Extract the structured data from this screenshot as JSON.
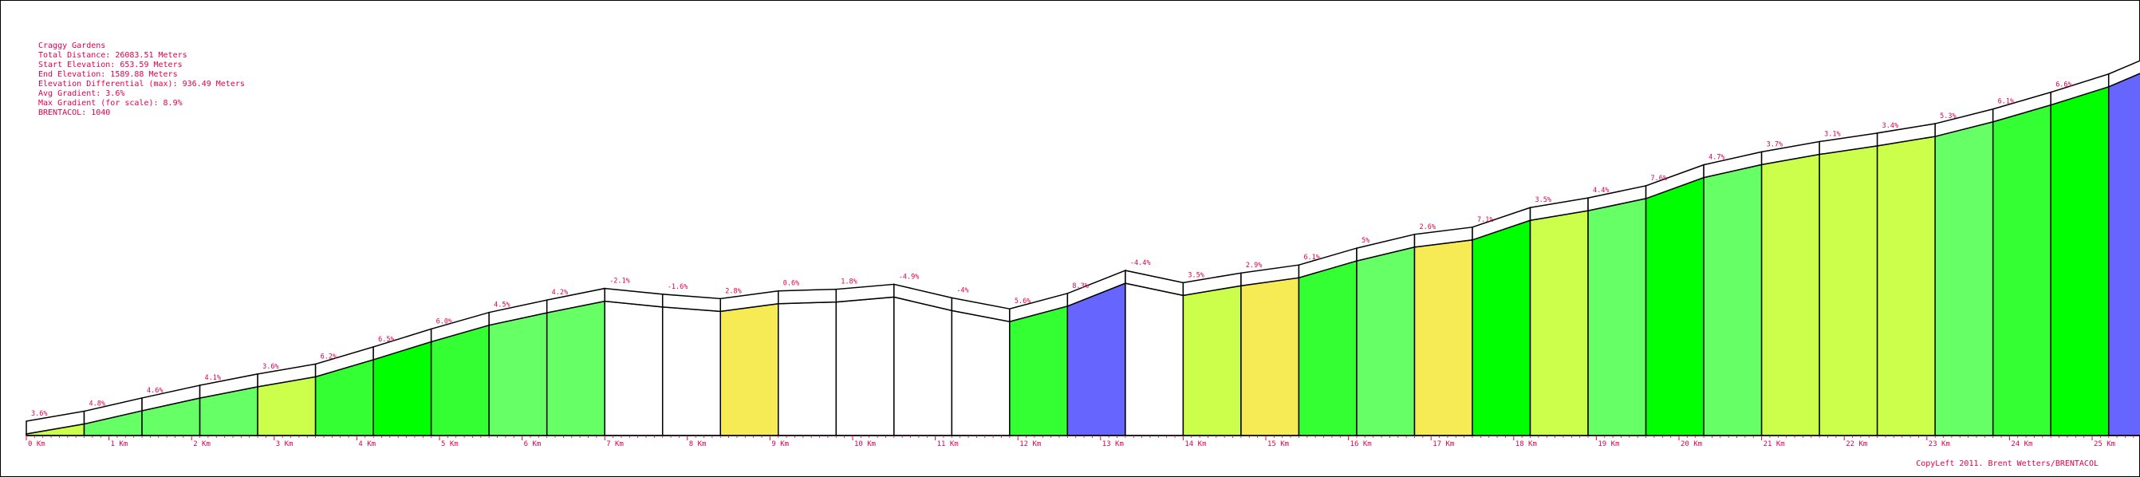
{
  "chart_data": {
    "type": "area",
    "info": {
      "name": "Craggy Gardens",
      "total_distance": "Total Distance: 26083.51 Meters",
      "start_elevation": "Start Elevation: 653.59 Meters",
      "end_elevation": "End Elevation: 1589.88 Meters",
      "elevation_differential": "Elevation Differential (max): 936.49 Meters",
      "avg_gradient": "Avg Gradient: 3.6%",
      "max_gradient": "Max Gradient (for scale): 8.9%",
      "brentacol": "BRENTACOL: 1040"
    },
    "x_unit_km": 1,
    "x_ticks": [
      "0 Km",
      "1 Km",
      "2 Km",
      "3 Km",
      "4 Km",
      "5 Km",
      "6 Km",
      "7 Km",
      "8 Km",
      "9 Km",
      "10 Km",
      "11 Km",
      "12 Km",
      "13 Km",
      "14 Km",
      "15 Km",
      "16 Km",
      "17 Km",
      "18 Km",
      "19 Km",
      "20 Km",
      "21 Km",
      "22 Km",
      "23 Km",
      "24 Km",
      "25 Km"
    ],
    "total_km": 26.08351,
    "start_elevation": 653.59,
    "segment_km": 0.7,
    "segments": [
      {
        "label": "3.6%",
        "gradient": 3.6
      },
      {
        "label": "4.8%",
        "gradient": 4.8
      },
      {
        "label": "4.6%",
        "gradient": 4.6
      },
      {
        "label": "4.1%",
        "gradient": 4.1
      },
      {
        "label": "3.6%",
        "gradient": 3.6
      },
      {
        "label": "6.2%",
        "gradient": 6.2
      },
      {
        "label": "6.5%",
        "gradient": 6.5
      },
      {
        "label": "6.0%",
        "gradient": 6.0
      },
      {
        "label": "4.5%",
        "gradient": 4.5
      },
      {
        "label": "4.2%",
        "gradient": 4.2
      },
      {
        "label": "-2.1%",
        "gradient": -2.1
      },
      {
        "label": "-1.6%",
        "gradient": -1.6
      },
      {
        "label": "2.8%",
        "gradient": 2.8
      },
      {
        "label": "0.6%",
        "gradient": 0.6
      },
      {
        "label": "1.8%",
        "gradient": 1.8
      },
      {
        "label": "-4.9%",
        "gradient": -4.9
      },
      {
        "label": "-4%",
        "gradient": -4.0
      },
      {
        "label": "5.6%",
        "gradient": 5.6
      },
      {
        "label": "8.3%",
        "gradient": 8.3
      },
      {
        "label": "-4.4%",
        "gradient": -4.4
      },
      {
        "label": "3.5%",
        "gradient": 3.5
      },
      {
        "label": "2.9%",
        "gradient": 2.9
      },
      {
        "label": "6.1%",
        "gradient": 6.1
      },
      {
        "label": "5%",
        "gradient": 5.0
      },
      {
        "label": "2.6%",
        "gradient": 2.6
      },
      {
        "label": "7.1%",
        "gradient": 7.1
      },
      {
        "label": "3.5%",
        "gradient": 3.5
      },
      {
        "label": "4.4%",
        "gradient": 4.4
      },
      {
        "label": "7.6%",
        "gradient": 7.6
      },
      {
        "label": "4.7%",
        "gradient": 4.7
      },
      {
        "label": "3.7%",
        "gradient": 3.7
      },
      {
        "label": "3.1%",
        "gradient": 3.1
      },
      {
        "label": "3.4%",
        "gradient": 3.4
      },
      {
        "label": "5.3%",
        "gradient": 5.3
      },
      {
        "label": "6.1%",
        "gradient": 6.1
      },
      {
        "label": "6.6%",
        "gradient": 6.6
      },
      {
        "label": "",
        "gradient": 8.9
      }
    ],
    "color_scale": [
      {
        "min": 8.0,
        "color": "#6666ff"
      },
      {
        "min": 6.5,
        "color": "#00ff00"
      },
      {
        "min": 5.5,
        "color": "#33ff33"
      },
      {
        "min": 4.0,
        "color": "#66ff66"
      },
      {
        "min": 3.0,
        "color": "#ccff4c"
      },
      {
        "min": 2.0,
        "color": "#f7eb55"
      },
      {
        "min": -99,
        "color": "#ffffff"
      }
    ],
    "copyright": "CopyLeft 2011. Brent Wetters/BRENTACOL"
  }
}
